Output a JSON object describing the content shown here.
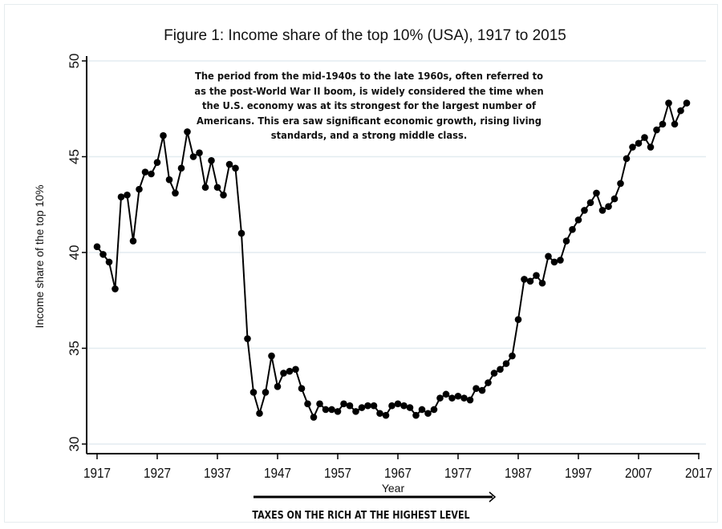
{
  "chart_data": {
    "type": "line",
    "title": "Figure 1: Income share of the top 10% (USA), 1917 to 2015",
    "xlabel": "Year",
    "ylabel": "Income share of the top 10%",
    "xlim": [
      1917,
      2017
    ],
    "ylim": [
      30,
      50
    ],
    "xticks": [
      "1917",
      "1927",
      "1937",
      "1947",
      "1957",
      "1967",
      "1977",
      "1987",
      "1997",
      "2007",
      "2017"
    ],
    "yticks": [
      "30",
      "35",
      "40",
      "45",
      "50"
    ],
    "grid": true,
    "marker": "filled-circle",
    "color": "#000000",
    "x": [
      1917,
      1918,
      1919,
      1920,
      1921,
      1922,
      1923,
      1924,
      1925,
      1926,
      1927,
      1928,
      1929,
      1930,
      1931,
      1932,
      1933,
      1934,
      1935,
      1936,
      1937,
      1938,
      1939,
      1940,
      1941,
      1942,
      1943,
      1944,
      1945,
      1946,
      1947,
      1948,
      1949,
      1950,
      1951,
      1952,
      1953,
      1954,
      1955,
      1956,
      1957,
      1958,
      1959,
      1960,
      1961,
      1962,
      1963,
      1964,
      1965,
      1966,
      1967,
      1968,
      1969,
      1970,
      1971,
      1972,
      1973,
      1974,
      1975,
      1976,
      1977,
      1978,
      1979,
      1980,
      1981,
      1982,
      1983,
      1984,
      1985,
      1986,
      1987,
      1988,
      1989,
      1990,
      1991,
      1992,
      1993,
      1994,
      1995,
      1996,
      1997,
      1998,
      1999,
      2000,
      2001,
      2002,
      2003,
      2004,
      2005,
      2006,
      2007,
      2008,
      2009,
      2010,
      2011,
      2012,
      2013,
      2014,
      2015
    ],
    "y": [
      40.3,
      39.9,
      39.5,
      38.1,
      42.9,
      43.0,
      40.6,
      43.3,
      44.2,
      44.1,
      44.7,
      46.1,
      43.8,
      43.1,
      44.4,
      46.3,
      45.0,
      45.2,
      43.4,
      44.8,
      43.4,
      43.0,
      44.6,
      44.4,
      41.0,
      35.5,
      32.7,
      31.6,
      32.7,
      34.6,
      33.0,
      33.7,
      33.8,
      33.9,
      32.9,
      32.1,
      31.4,
      32.1,
      31.8,
      31.8,
      31.7,
      32.1,
      32.0,
      31.7,
      31.9,
      32.0,
      32.0,
      31.6,
      31.5,
      32.0,
      32.1,
      32.0,
      31.9,
      31.5,
      31.8,
      31.6,
      31.8,
      32.4,
      32.6,
      32.4,
      32.5,
      32.4,
      32.3,
      32.9,
      32.8,
      33.2,
      33.7,
      33.9,
      34.2,
      34.6,
      36.5,
      38.6,
      38.5,
      38.8,
      38.4,
      39.8,
      39.5,
      39.6,
      40.6,
      41.2,
      41.7,
      42.2,
      42.6,
      43.1,
      42.2,
      42.4,
      42.8,
      43.6,
      44.9,
      45.5,
      45.7,
      46.0,
      45.5,
      46.4,
      46.7,
      47.8,
      46.7,
      47.4,
      47.8
    ],
    "annotation": "The period from the mid-1940s to the late 1960s, often referred to as the post-World War II boom, is widely considered the time when the U.S. economy was at its strongest for the largest number of Americans. This era saw significant economic growth, rising living standards, and a strong middle class.",
    "arrow_span": [
      1943,
      1983
    ],
    "arrow_label": "TAXES ON THE RICH AT THE HIGHEST LEVEL"
  }
}
